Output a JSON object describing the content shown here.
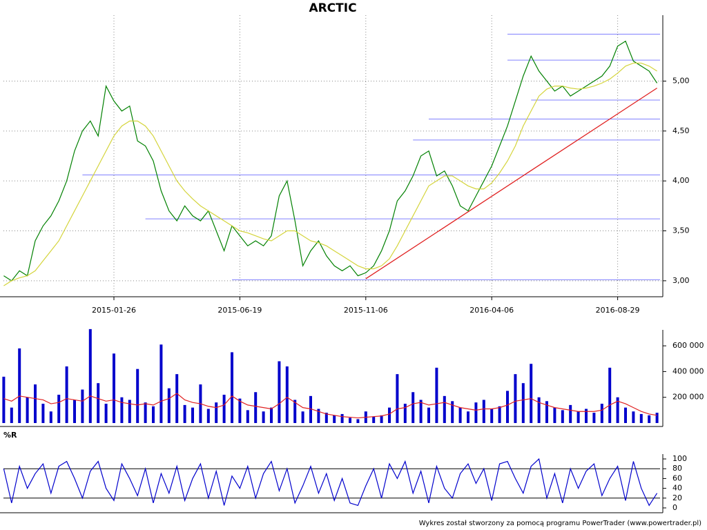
{
  "chart_data": [
    {
      "type": "line",
      "title": "ARCTIC",
      "x": [
        null,
        null,
        null,
        null,
        null,
        null,
        null,
        null,
        null,
        null,
        null,
        null,
        null,
        null,
        "2015-01-26",
        null,
        null,
        null,
        null,
        null,
        null,
        null,
        null,
        null,
        null,
        null,
        null,
        null,
        null,
        null,
        "2015-06-19",
        null,
        null,
        null,
        null,
        null,
        null,
        null,
        null,
        null,
        null,
        null,
        null,
        null,
        null,
        null,
        "2015-11-06",
        null,
        null,
        null,
        null,
        null,
        null,
        null,
        null,
        null,
        null,
        null,
        null,
        null,
        null,
        null,
        "2016-04-06",
        null,
        null,
        null,
        null,
        null,
        null,
        null,
        null,
        null,
        null,
        null,
        null,
        null,
        null,
        null,
        "2016-08-29",
        null,
        null,
        null,
        null,
        null
      ],
      "series": [
        {
          "color": "#008000",
          "values": [
            3.05,
            3.0,
            3.1,
            3.05,
            3.4,
            3.55,
            3.65,
            3.8,
            4.0,
            4.3,
            4.5,
            4.6,
            4.45,
            4.95,
            4.8,
            4.7,
            4.75,
            4.4,
            4.35,
            4.2,
            3.9,
            3.7,
            3.6,
            3.75,
            3.65,
            3.6,
            3.7,
            3.5,
            3.3,
            3.55,
            3.45,
            3.35,
            3.4,
            3.35,
            3.45,
            3.85,
            4.0,
            3.6,
            3.15,
            3.3,
            3.4,
            3.25,
            3.15,
            3.1,
            3.15,
            3.05,
            3.08,
            3.15,
            3.3,
            3.5,
            3.8,
            3.9,
            4.05,
            4.25,
            4.3,
            4.05,
            4.1,
            3.95,
            3.75,
            3.7,
            3.85,
            4.0,
            4.15,
            4.35,
            4.55,
            4.8,
            5.05,
            5.25,
            5.1,
            5.0,
            4.9,
            4.95,
            4.85,
            4.9,
            4.95,
            5.0,
            5.05,
            5.15,
            5.35,
            5.4,
            5.2,
            5.15,
            5.1,
            4.98
          ]
        },
        {
          "color": "#d4d43a",
          "values": [
            2.95,
            3.0,
            3.03,
            3.05,
            3.1,
            3.2,
            3.3,
            3.4,
            3.55,
            3.7,
            3.85,
            4.0,
            4.15,
            4.3,
            4.45,
            4.55,
            4.6,
            4.6,
            4.55,
            4.45,
            4.3,
            4.15,
            4.0,
            3.9,
            3.82,
            3.75,
            3.7,
            3.65,
            3.6,
            3.55,
            3.5,
            3.48,
            3.45,
            3.42,
            3.4,
            3.45,
            3.5,
            3.5,
            3.45,
            3.4,
            3.38,
            3.35,
            3.3,
            3.25,
            3.2,
            3.15,
            3.12,
            3.12,
            3.15,
            3.22,
            3.35,
            3.5,
            3.65,
            3.8,
            3.95,
            4.0,
            4.05,
            4.05,
            4.0,
            3.95,
            3.92,
            3.92,
            3.98,
            4.08,
            4.2,
            4.35,
            4.55,
            4.7,
            4.85,
            4.92,
            4.95,
            4.95,
            4.93,
            4.92,
            4.93,
            4.95,
            4.98,
            5.02,
            5.08,
            5.15,
            5.18,
            5.18,
            5.15,
            5.1
          ]
        }
      ],
      "levels": [
        {
          "y": 5.47,
          "x_start": 64
        },
        {
          "y": 5.21,
          "x_start": 64
        },
        {
          "y": 4.81,
          "x_start": 67
        },
        {
          "y": 4.62,
          "x_start": 54
        },
        {
          "y": 4.41,
          "x_start": 52
        },
        {
          "y": 4.06,
          "x_start": 10
        },
        {
          "y": 3.62,
          "x_start": 18
        },
        {
          "y": 3.01,
          "x_start": 29
        }
      ],
      "level_color": "#8080ff",
      "trend": {
        "x": [
          46,
          83
        ],
        "y": [
          3.02,
          4.93
        ],
        "color": "#e02020"
      },
      "ylim": [
        2.84,
        5.66
      ],
      "yticks": [
        {
          "value": 3,
          "label": "3,00"
        },
        {
          "value": 3.5,
          "label": "3,50"
        },
        {
          "value": 4,
          "label": "4,00"
        },
        {
          "value": 4.5,
          "label": "4,50"
        },
        {
          "value": 5,
          "label": "5,00"
        }
      ],
      "grid": true
    },
    {
      "type": "bar",
      "series": [
        {
          "color": "#0000cc",
          "values": [
            360000,
            120000,
            580000,
            200000,
            300000,
            150000,
            90000,
            220000,
            440000,
            180000,
            260000,
            730000,
            310000,
            150000,
            540000,
            200000,
            180000,
            420000,
            160000,
            130000,
            610000,
            270000,
            380000,
            140000,
            120000,
            300000,
            110000,
            160000,
            220000,
            550000,
            190000,
            100000,
            240000,
            90000,
            120000,
            480000,
            440000,
            180000,
            90000,
            210000,
            110000,
            80000,
            60000,
            70000,
            40000,
            30000,
            90000,
            50000,
            60000,
            120000,
            380000,
            150000,
            240000,
            180000,
            120000,
            430000,
            210000,
            170000,
            120000,
            90000,
            160000,
            180000,
            110000,
            130000,
            250000,
            380000,
            310000,
            460000,
            200000,
            170000,
            120000,
            100000,
            140000,
            90000,
            110000,
            80000,
            150000,
            430000,
            200000,
            120000,
            90000,
            70000,
            60000,
            80000
          ]
        },
        {
          "color": "#e02020",
          "line": true,
          "values": [
            190000,
            170000,
            210000,
            200000,
            190000,
            180000,
            150000,
            160000,
            190000,
            180000,
            170000,
            210000,
            190000,
            170000,
            180000,
            160000,
            150000,
            140000,
            150000,
            140000,
            170000,
            190000,
            230000,
            180000,
            160000,
            150000,
            130000,
            120000,
            140000,
            210000,
            170000,
            140000,
            130000,
            120000,
            110000,
            150000,
            200000,
            160000,
            120000,
            110000,
            90000,
            70000,
            60000,
            50000,
            45000,
            40000,
            45000,
            50000,
            55000,
            70000,
            110000,
            120000,
            150000,
            160000,
            140000,
            150000,
            160000,
            140000,
            120000,
            110000,
            100000,
            110000,
            110000,
            120000,
            140000,
            170000,
            180000,
            190000,
            160000,
            140000,
            120000,
            110000,
            100000,
            90000,
            90000,
            90000,
            100000,
            140000,
            170000,
            150000,
            120000,
            90000,
            70000,
            60000
          ]
        }
      ],
      "ylim": [
        0,
        724000
      ],
      "yticks": [
        {
          "value": 200000,
          "label": "200 000"
        },
        {
          "value": 400000,
          "label": "400 000"
        },
        {
          "value": 600000,
          "label": "600 000"
        }
      ]
    },
    {
      "type": "line",
      "title": "%R",
      "series": [
        {
          "color": "#0000cc",
          "values": [
            80,
            10,
            85,
            40,
            70,
            90,
            30,
            85,
            95,
            60,
            20,
            75,
            95,
            40,
            15,
            90,
            60,
            25,
            80,
            10,
            70,
            30,
            85,
            15,
            60,
            90,
            20,
            75,
            5,
            65,
            40,
            85,
            20,
            70,
            95,
            35,
            80,
            10,
            45,
            85,
            30,
            70,
            15,
            60,
            10,
            5,
            45,
            80,
            20,
            90,
            60,
            95,
            30,
            75,
            10,
            85,
            40,
            20,
            70,
            90,
            50,
            80,
            15,
            90,
            95,
            60,
            30,
            85,
            100,
            20,
            70,
            10,
            80,
            40,
            75,
            90,
            25,
            60,
            85,
            15,
            95,
            40,
            5,
            30
          ]
        }
      ],
      "levels": [
        {
          "y": 20
        },
        {
          "y": 80
        }
      ],
      "level_color": "#000000",
      "ylim": [
        -9.9,
        109.9
      ],
      "yticks": [
        0,
        20,
        40,
        60,
        80,
        100
      ]
    }
  ],
  "footer": "Wykres został stworzony za pomocą programu PowerTrader (www.powertrader.pl)"
}
